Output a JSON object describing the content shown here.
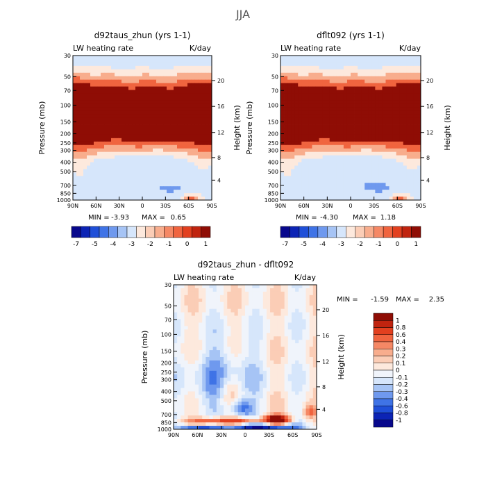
{
  "figure": {
    "season": "JJA",
    "colors": {
      "blue_scale": [
        "#08088c",
        "#0c24b5",
        "#1f4fd8",
        "#3f73e6",
        "#6f99ee",
        "#a6c4f5",
        "#d6e6fb"
      ],
      "red_scale": [
        "#fde9dd",
        "#fbcdb6",
        "#f8ad8d",
        "#f58865",
        "#f0643f",
        "#e2401f",
        "#c0240f",
        "#8f0d05"
      ]
    }
  },
  "chart_data": [
    {
      "type": "heatmap",
      "title": "d92taus_zhun (yrs 1-1)",
      "left_label": "LW heating rate",
      "right_label": "K/day",
      "ylabel": "Pressure (mb)",
      "y2label": "Height (km)",
      "x_ticks": [
        "90N",
        "60N",
        "30N",
        "0",
        "30S",
        "60S",
        "90S"
      ],
      "y_ticks": [
        "30",
        "50",
        "70",
        "100",
        "150",
        "200",
        "250",
        "300",
        "400",
        "500",
        "700",
        "850",
        "1000"
      ],
      "y_tick_values": [
        30,
        50,
        70,
        100,
        150,
        200,
        250,
        300,
        400,
        500,
        700,
        850,
        1000
      ],
      "y2_ticks": [
        "20",
        "16",
        "12",
        "8",
        "4"
      ],
      "y2_tick_pressures": [
        55,
        103,
        194,
        357,
        617
      ],
      "xlim": [
        90,
        -90
      ],
      "ylim": [
        1000,
        30
      ],
      "min_label": "MIN =",
      "min_value": "-3.93",
      "max_label": "MAX =",
      "max_value": "0.65",
      "colorbar": {
        "orientation": "horizontal",
        "labels": [
          "-7",
          "-5",
          "-4",
          "-3",
          "-2",
          "-1",
          "0",
          "1"
        ]
      }
    },
    {
      "type": "heatmap",
      "title": "dflt092 (yrs 1-1)",
      "left_label": "LW heating rate",
      "right_label": "K/day",
      "ylabel": "Pressure (mb)",
      "y2label": "Height (km)",
      "x_ticks": [
        "90N",
        "60N",
        "30N",
        "0",
        "30S",
        "60S",
        "90S"
      ],
      "y_ticks": [
        "30",
        "50",
        "70",
        "100",
        "150",
        "200",
        "250",
        "300",
        "400",
        "500",
        "700",
        "850",
        "1000"
      ],
      "y_tick_values": [
        30,
        50,
        70,
        100,
        150,
        200,
        250,
        300,
        400,
        500,
        700,
        850,
        1000
      ],
      "y2_ticks": [
        "20",
        "16",
        "12",
        "8",
        "4"
      ],
      "y2_tick_pressures": [
        55,
        103,
        194,
        357,
        617
      ],
      "xlim": [
        90,
        -90
      ],
      "ylim": [
        1000,
        30
      ],
      "min_label": "MIN =",
      "min_value": "-4.30",
      "max_label": "MAX =",
      "max_value": "1.18",
      "colorbar": {
        "orientation": "horizontal",
        "labels": [
          "-7",
          "-5",
          "-4",
          "-3",
          "-2",
          "-1",
          "0",
          "1"
        ]
      }
    },
    {
      "type": "heatmap",
      "title": "d92taus_zhun - dflt092",
      "left_label": "LW heating rate",
      "right_label": "K/day",
      "ylabel": "Pressure (mb)",
      "y2label": "Height (km)",
      "x_ticks": [
        "90N",
        "60N",
        "30N",
        "0",
        "30S",
        "60S",
        "90S"
      ],
      "y_ticks": [
        "30",
        "50",
        "70",
        "100",
        "150",
        "200",
        "250",
        "300",
        "400",
        "500",
        "700",
        "850",
        "1000"
      ],
      "y_tick_values": [
        30,
        50,
        70,
        100,
        150,
        200,
        250,
        300,
        400,
        500,
        700,
        850,
        1000
      ],
      "y2_ticks": [
        "20",
        "16",
        "12",
        "8",
        "4"
      ],
      "y2_tick_pressures": [
        55,
        103,
        194,
        357,
        617
      ],
      "xlim": [
        90,
        -90
      ],
      "ylim": [
        1000,
        30
      ],
      "min_label": "MIN =",
      "min_value": "-1.59",
      "max_label": "MAX =",
      "max_value": "2.35",
      "colorbar": {
        "orientation": "vertical",
        "labels": [
          "1",
          "0.8",
          "0.6",
          "0.4",
          "0.3",
          "0.2",
          "0.1",
          "0",
          "-0.1",
          "-0.2",
          "-0.3",
          "-0.4",
          "-0.6",
          "-0.8",
          "-1"
        ]
      }
    }
  ]
}
